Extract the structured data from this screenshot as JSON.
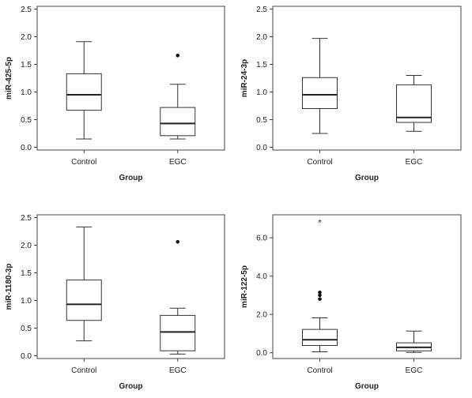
{
  "chart_data": [
    {
      "type": "boxplot",
      "xlabel": "Group",
      "ylabel": "miR-425-5p",
      "ylim": [
        -0.05,
        2.55
      ],
      "yticks": [
        0.0,
        0.5,
        1.0,
        1.5,
        2.0,
        2.5
      ],
      "ytick_labels": [
        "0.0",
        "0.5",
        "1.0",
        "1.5",
        "2.0",
        "2.5"
      ],
      "categories": [
        "Control",
        "EGC"
      ],
      "boxes": [
        {
          "category": "Control",
          "whisker_low": 0.15,
          "q1": 0.67,
          "median": 0.95,
          "q3": 1.33,
          "whisker_high": 1.91,
          "outliers": [],
          "extremes": []
        },
        {
          "category": "EGC",
          "whisker_low": 0.15,
          "q1": 0.21,
          "median": 0.43,
          "q3": 0.72,
          "whisker_high": 1.14,
          "outliers": [
            1.66
          ],
          "extremes": []
        }
      ]
    },
    {
      "type": "boxplot",
      "xlabel": "Group",
      "ylabel": "miR-24-3p",
      "ylim": [
        -0.05,
        2.55
      ],
      "yticks": [
        0.0,
        0.5,
        1.0,
        1.5,
        2.0,
        2.5
      ],
      "ytick_labels": [
        "0.0",
        "0.5",
        "1.0",
        "1.5",
        "2.0",
        "2.5"
      ],
      "categories": [
        "Control",
        "EGC"
      ],
      "boxes": [
        {
          "category": "Control",
          "whisker_low": 0.25,
          "q1": 0.7,
          "median": 0.95,
          "q3": 1.26,
          "whisker_high": 1.97,
          "outliers": [],
          "extremes": []
        },
        {
          "category": "EGC",
          "whisker_low": 0.29,
          "q1": 0.45,
          "median": 0.54,
          "q3": 1.13,
          "whisker_high": 1.3,
          "outliers": [],
          "extremes": []
        }
      ]
    },
    {
      "type": "boxplot",
      "xlabel": "Group",
      "ylabel": "miR-1180-3p",
      "ylim": [
        -0.05,
        2.55
      ],
      "yticks": [
        0.0,
        0.5,
        1.0,
        1.5,
        2.0,
        2.5
      ],
      "ytick_labels": [
        "0.0",
        "0.5",
        "1.0",
        "1.5",
        "2.0",
        "2.5"
      ],
      "categories": [
        "Control",
        "EGC"
      ],
      "boxes": [
        {
          "category": "Control",
          "whisker_low": 0.27,
          "q1": 0.64,
          "median": 0.93,
          "q3": 1.37,
          "whisker_high": 2.33,
          "outliers": [],
          "extremes": []
        },
        {
          "category": "EGC",
          "whisker_low": 0.03,
          "q1": 0.09,
          "median": 0.43,
          "q3": 0.73,
          "whisker_high": 0.86,
          "outliers": [
            2.06
          ],
          "extremes": []
        }
      ]
    },
    {
      "type": "boxplot",
      "xlabel": "Group",
      "ylabel": "miR-122-5p",
      "ylim": [
        -0.3,
        7.2
      ],
      "yticks": [
        0.0,
        2.0,
        4.0,
        6.0
      ],
      "ytick_labels": [
        "0.0",
        "2.0",
        "4.0",
        "6.0"
      ],
      "categories": [
        "Control",
        "EGC"
      ],
      "boxes": [
        {
          "category": "Control",
          "whisker_low": 0.05,
          "q1": 0.38,
          "median": 0.68,
          "q3": 1.22,
          "whisker_high": 1.82,
          "outliers": [
            2.8,
            3.0,
            3.15
          ],
          "extremes": [
            6.85
          ]
        },
        {
          "category": "EGC",
          "whisker_low": 0.02,
          "q1": 0.1,
          "median": 0.28,
          "q3": 0.52,
          "whisker_high": 1.13,
          "outliers": [],
          "extremes": []
        }
      ]
    }
  ]
}
